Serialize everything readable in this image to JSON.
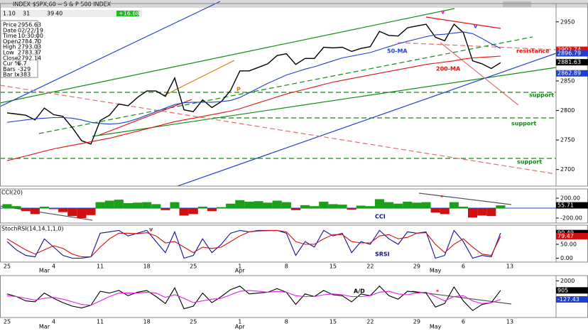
{
  "header": {
    "fields": [
      "1.10",
      "31",
      "39",
      "40"
    ],
    "change": "+16.68"
  },
  "info_box": [
    {
      "label": "Price",
      "value": "2956.63"
    },
    {
      "label": "Date",
      "value": "02/22/19"
    },
    {
      "label": "Time",
      "value": "10:30:00"
    },
    {
      "label": "Open",
      "value": "2784.70"
    },
    {
      "label": "High",
      "value": "2793.03"
    },
    {
      "label": "Low",
      "value": "2783.37"
    },
    {
      "label": "Close",
      "value": "2792.14"
    },
    {
      "label": "Cur %",
      "value": "6.7"
    },
    {
      "label": "Bars",
      "value": "-329"
    },
    {
      "label": "Bar Ix",
      "value": "-383"
    }
  ],
  "chart_data": {
    "type": "panels",
    "title": "INDEX $SPX,60 -- S & P 500 INDEX",
    "categories": [
      "25",
      null,
      null,
      null,
      null,
      "4",
      null,
      null,
      null,
      null,
      "11",
      null,
      null,
      null,
      null,
      "18",
      null,
      null,
      null,
      null,
      "25",
      null,
      null,
      null,
      null,
      "1",
      null,
      null,
      null,
      null,
      "8",
      null,
      null,
      null,
      null,
      "15",
      null,
      null,
      null,
      "22",
      null,
      null,
      null,
      null,
      "29",
      null,
      null,
      null,
      null,
      "6",
      null,
      null,
      null,
      null,
      "13"
    ],
    "months": [
      null,
      null,
      null,
      null,
      "Mar",
      null,
      null,
      null,
      null,
      null,
      null,
      null,
      null,
      null,
      null,
      null,
      null,
      null,
      null,
      null,
      null,
      null,
      null,
      null,
      null,
      "Apr",
      null,
      null,
      null,
      null,
      null,
      null,
      null,
      null,
      null,
      null,
      null,
      null,
      null,
      null,
      null,
      null,
      null,
      null,
      null,
      null,
      "May",
      null,
      null,
      null,
      null,
      null,
      null,
      null,
      null
    ],
    "panels": [
      {
        "type": "line",
        "ylim": [
          2672,
          2981
        ],
        "yticks": [
          2700,
          2750,
          2800,
          2850,
          2900,
          2950
        ],
        "series": [
          {
            "color": "#000000",
            "values": [
              2796,
              2794,
              2792,
              2784,
              2804,
              2793,
              2790,
              2771,
              2749,
              2743,
              2783,
              2792,
              2811,
              2808,
              2822,
              2833,
              2833,
              2824,
              2855,
              2801,
              2798,
              2818,
              2805,
              2815,
              2834,
              2867,
              2867,
              2873,
              2879,
              2893,
              2896,
              2878,
              2888,
              2888,
              2907,
              2906,
              2907,
              2900,
              2905,
              2908,
              2934,
              2927,
              2926,
              2940,
              2943,
              2946,
              2924,
              2918,
              2946,
              2932,
              2884,
              2879,
              2871,
              2881,
              null
            ]
          },
          {
            "name": "50-MA",
            "color": "#1f3fd0",
            "values": [
              2780,
              2782,
              2784,
              2786,
              2787,
              2788,
              2788,
              2787,
              2784,
              2780,
              2778,
              2777,
              2778,
              2781,
              2786,
              2792,
              2798,
              2804,
              2810,
              2813,
              2814,
              2814,
              2814,
              2815,
              2817,
              2822,
              2830,
              2838,
              2846,
              2853,
              2860,
              2865,
              2870,
              2874,
              2879,
              2884,
              2889,
              2892,
              2895,
              2898,
              2903,
              2908,
              2913,
              2917,
              2921,
              2925,
              2928,
              2929,
              2931,
              2933,
              2930,
              2922,
              2913,
              2905,
              null
            ]
          },
          {
            "name": "200-MA",
            "color": "#e01010",
            "values": [
              2715,
              2719,
              2723,
              2727,
              2731,
              2735,
              2738,
              2741,
              2744,
              2747,
              2750,
              2753,
              2757,
              2761,
              2765,
              2769,
              2773,
              2777,
              2781,
              2784,
              2787,
              2790,
              2793,
              2796,
              2799,
              2803,
              2808,
              2813,
              2818,
              2823,
              2828,
              2832,
              2836,
              2840,
              2844,
              2848,
              2851,
              2854,
              2857,
              2860,
              2863,
              2866,
              2869,
              2872,
              2875,
              2878,
              2880,
              2882,
              2884,
              2887,
              2889,
              2890,
              2891,
              2892,
              null
            ]
          }
        ],
        "markers": [
          {
            "value": 2902.74,
            "color": "#e01010"
          },
          {
            "value": 2896.79,
            "color": "#1f3fd0"
          },
          {
            "value": 2881.63,
            "color": "#000000"
          },
          {
            "value": 2862.89,
            "color": "#1f3fd0"
          }
        ],
        "annotations": [
          {
            "text": "resistance",
            "color": "#e01010"
          },
          {
            "text": "support",
            "color": "#138a13"
          },
          {
            "text": "support",
            "color": "#138a13"
          },
          {
            "text": "support",
            "color": "#138a13"
          },
          {
            "text": "P",
            "color": "#c88000"
          },
          {
            "text": "v",
            "color": "#c010c0"
          },
          {
            "text": "v",
            "color": "#3030c0"
          }
        ]
      },
      {
        "type": "bar",
        "title": "CCI(20)",
        "name": "CCI",
        "ylim": [
          -300,
          386
        ],
        "yticks": [
          {
            "value": 200,
            "label": "200.00"
          },
          {
            "value": -200,
            "label": "-200.00"
          }
        ],
        "pos_color": "#19a019",
        "neg_color": "#d01010",
        "values": [
          80,
          40,
          -60,
          -120,
          30,
          -20,
          -80,
          -160,
          -200,
          -140,
          120,
          150,
          170,
          100,
          110,
          120,
          80,
          -40,
          120,
          -150,
          -120,
          30,
          -60,
          20,
          90,
          160,
          130,
          140,
          110,
          150,
          120,
          -40,
          60,
          40,
          130,
          80,
          70,
          -30,
          50,
          40,
          180,
          120,
          90,
          130,
          110,
          120,
          -90,
          -120,
          120,
          30,
          -190,
          -150,
          -160,
          55.71,
          null
        ],
        "markers": [
          {
            "value": 55.71,
            "color": "#000000"
          }
        ],
        "annotations": [
          {
            "text": "*",
            "color": "#e01010"
          }
        ]
      },
      {
        "type": "line",
        "title": "StochRSI(14,14,1,1,0)",
        "ylim": [
          -14,
          119
        ],
        "yticks": [
          {
            "value": 50,
            "label": "50.00"
          },
          {
            "value": 0,
            "label": "0.00"
          }
        ],
        "series": [
          {
            "name": "SRSI",
            "color": "#1010a0",
            "values": [
              60,
              30,
              10,
              5,
              70,
              40,
              10,
              0,
              0,
              5,
              90,
              95,
              100,
              80,
              90,
              100,
              60,
              20,
              95,
              0,
              10,
              70,
              20,
              50,
              90,
              100,
              95,
              100,
              100,
              100,
              90,
              10,
              60,
              40,
              100,
              80,
              90,
              20,
              60,
              50,
              100,
              70,
              50,
              95,
              90,
              95,
              0,
              10,
              100,
              60,
              0,
              10,
              5,
              90.49,
              null
            ]
          },
          {
            "color": "#d01010",
            "values": [
              70,
              50,
              30,
              15,
              30,
              45,
              35,
              15,
              5,
              5,
              40,
              70,
              90,
              90,
              88,
              92,
              80,
              55,
              60,
              40,
              20,
              40,
              35,
              40,
              60,
              80,
              95,
              98,
              99,
              100,
              95,
              60,
              50,
              50,
              70,
              85,
              85,
              60,
              55,
              55,
              80,
              85,
              70,
              75,
              90,
              92,
              50,
              20,
              50,
              70,
              40,
              15,
              10,
              79.47,
              null
            ]
          }
        ],
        "markers": [
          {
            "value": 90.49,
            "color": "#000000"
          },
          {
            "value": 79.47,
            "color": "#d01010"
          }
        ],
        "annotations": [
          {
            "text": "v",
            "color": "#e01010"
          }
        ]
      },
      {
        "type": "line",
        "ylim": [
          -2200,
          2600
        ],
        "yticks": [
          2000
        ],
        "series": [
          {
            "name": "A/D",
            "color": "#000000",
            "values": [
              500,
              200,
              -300,
              -400,
              600,
              0,
              -500,
              -900,
              -1100,
              -800,
              800,
              600,
              900,
              300,
              700,
              900,
              200,
              -600,
              1200,
              -1200,
              -900,
              600,
              -500,
              200,
              1000,
              1400,
              500,
              600,
              700,
              1100,
              700,
              -700,
              500,
              200,
              900,
              400,
              300,
              -400,
              500,
              300,
              1400,
              300,
              -100,
              800,
              700,
              600,
              -1000,
              -600,
              1300,
              -300,
              -1400,
              -700,
              -500,
              905,
              null
            ]
          },
          {
            "color": "#e020e0",
            "values": [
              300,
              200,
              0,
              -200,
              0,
              100,
              -100,
              -400,
              -700,
              -800,
              -300,
              200,
              600,
              600,
              600,
              700,
              600,
              100,
              400,
              0,
              -500,
              -300,
              -100,
              0,
              400,
              800,
              900,
              800,
              700,
              800,
              700,
              300,
              200,
              200,
              400,
              500,
              400,
              200,
              200,
              300,
              700,
              800,
              500,
              400,
              600,
              700,
              200,
              -300,
              200,
              300,
              -300,
              -600,
              -500,
              -127.43,
              null
            ]
          }
        ],
        "markers": [
          {
            "value": 905,
            "color": "#000000"
          },
          {
            "value": -127.43,
            "color": "#1f3fd0"
          }
        ],
        "annotations": [
          {
            "text": "*",
            "color": "#e01010"
          }
        ]
      }
    ]
  }
}
